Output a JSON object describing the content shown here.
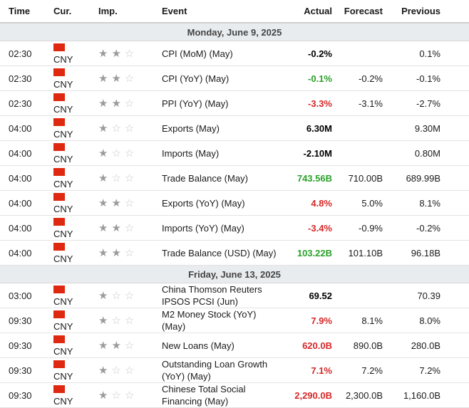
{
  "header": {
    "time": "Time",
    "cur": "Cur.",
    "imp": "Imp.",
    "event": "Event",
    "actual": "Actual",
    "forecast": "Forecast",
    "previous": "Previous"
  },
  "colors": {
    "positive": "#2aa02a",
    "negative": "#d62828",
    "flag": "#de2910"
  },
  "days": [
    {
      "label": "Monday, June 9, 2025",
      "rows": [
        {
          "time": "02:30",
          "cur": "CNY",
          "imp": 2,
          "event": "CPI (MoM) (May)",
          "actual": "-0.2%",
          "actual_color": "neutral",
          "forecast": "",
          "previous": "0.1%"
        },
        {
          "time": "02:30",
          "cur": "CNY",
          "imp": 2,
          "event": "CPI (YoY) (May)",
          "actual": "-0.1%",
          "actual_color": "positive",
          "forecast": "-0.2%",
          "previous": "-0.1%"
        },
        {
          "time": "02:30",
          "cur": "CNY",
          "imp": 2,
          "event": "PPI (YoY) (May)",
          "actual": "-3.3%",
          "actual_color": "negative",
          "forecast": "-3.1%",
          "previous": "-2.7%"
        },
        {
          "time": "04:00",
          "cur": "CNY",
          "imp": 1,
          "event": "Exports (May)",
          "actual": "6.30M",
          "actual_color": "neutral",
          "forecast": "",
          "previous": "9.30M"
        },
        {
          "time": "04:00",
          "cur": "CNY",
          "imp": 1,
          "event": "Imports (May)",
          "actual": "-2.10M",
          "actual_color": "neutral",
          "forecast": "",
          "previous": "0.80M"
        },
        {
          "time": "04:00",
          "cur": "CNY",
          "imp": 1,
          "event": "Trade Balance (May)",
          "actual": "743.56B",
          "actual_color": "positive",
          "forecast": "710.00B",
          "previous": "689.99B"
        },
        {
          "time": "04:00",
          "cur": "CNY",
          "imp": 2,
          "event": "Exports (YoY) (May)",
          "actual": "4.8%",
          "actual_color": "negative",
          "forecast": "5.0%",
          "previous": "8.1%"
        },
        {
          "time": "04:00",
          "cur": "CNY",
          "imp": 2,
          "event": "Imports (YoY) (May)",
          "actual": "-3.4%",
          "actual_color": "negative",
          "forecast": "-0.9%",
          "previous": "-0.2%"
        },
        {
          "time": "04:00",
          "cur": "CNY",
          "imp": 2,
          "event": "Trade Balance (USD) (May)",
          "actual": "103.22B",
          "actual_color": "positive",
          "forecast": "101.10B",
          "previous": "96.18B"
        }
      ]
    },
    {
      "label": "Friday, June 13, 2025",
      "rows": [
        {
          "time": "03:00",
          "cur": "CNY",
          "imp": 1,
          "event": "China Thomson Reuters IPSOS PCSI (Jun)",
          "actual": "69.52",
          "actual_color": "neutral",
          "forecast": "",
          "previous": "70.39",
          "tall": true
        },
        {
          "time": "09:30",
          "cur": "CNY",
          "imp": 1,
          "event": "M2 Money Stock (YoY) (May)",
          "actual": "7.9%",
          "actual_color": "negative",
          "forecast": "8.1%",
          "previous": "8.0%"
        },
        {
          "time": "09:30",
          "cur": "CNY",
          "imp": 2,
          "event": "New Loans (May)",
          "actual": "620.0B",
          "actual_color": "negative",
          "forecast": "890.0B",
          "previous": "280.0B"
        },
        {
          "time": "09:30",
          "cur": "CNY",
          "imp": 1,
          "event": "Outstanding Loan Growth (YoY) (May)",
          "actual": "7.1%",
          "actual_color": "negative",
          "forecast": "7.2%",
          "previous": "7.2%",
          "tall": true
        },
        {
          "time": "09:30",
          "cur": "CNY",
          "imp": 1,
          "event": "Chinese Total Social Financing (May)",
          "actual": "2,290.0B",
          "actual_color": "negative",
          "forecast": "2,300.0B",
          "previous": "1,160.0B",
          "tall": true
        }
      ]
    }
  ]
}
